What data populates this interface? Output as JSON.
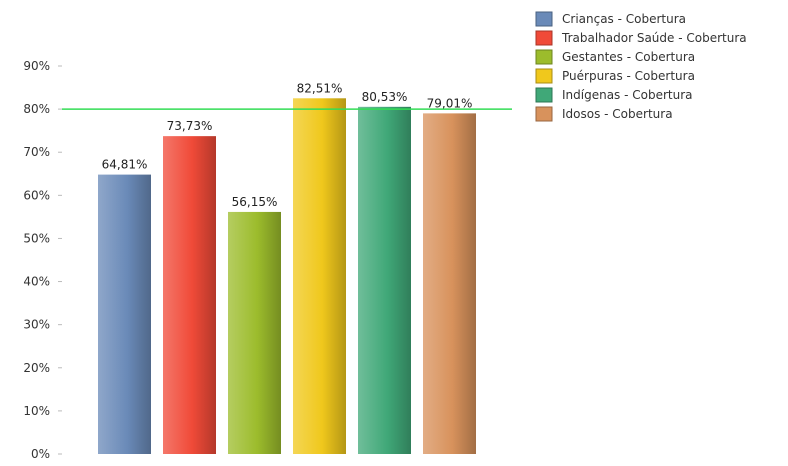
{
  "chart_data": {
    "type": "bar",
    "title": "",
    "xlabel": "",
    "ylabel": "",
    "ylim": [
      0,
      90
    ],
    "yticks": [
      0,
      10,
      20,
      30,
      40,
      50,
      60,
      70,
      80,
      90
    ],
    "ytick_suffix": "%",
    "grid": false,
    "legend_position": "top-right",
    "reference_line": {
      "value": 80,
      "color": "#33dd55"
    },
    "series": [
      {
        "name": "Crianças - Cobertura",
        "value": 64.81,
        "label": "64,81%",
        "color": "#6a8ab8"
      },
      {
        "name": "Trabalhador Saúde - Cobertura",
        "value": 73.73,
        "label": "73,73%",
        "color": "#f04a38"
      },
      {
        "name": "Gestantes - Cobertura",
        "value": 56.15,
        "label": "56,15%",
        "color": "#9cbc2c"
      },
      {
        "name": "Puérpuras - Cobertura",
        "value": 82.51,
        "label": "82,51%",
        "color": "#f0c81c"
      },
      {
        "name": "Indígenas - Cobertura",
        "value": 80.53,
        "label": "80,53%",
        "color": "#40a878"
      },
      {
        "name": "Idosos - Cobertura",
        "value": 79.01,
        "label": "79,01%",
        "color": "#d8925c"
      }
    ]
  }
}
